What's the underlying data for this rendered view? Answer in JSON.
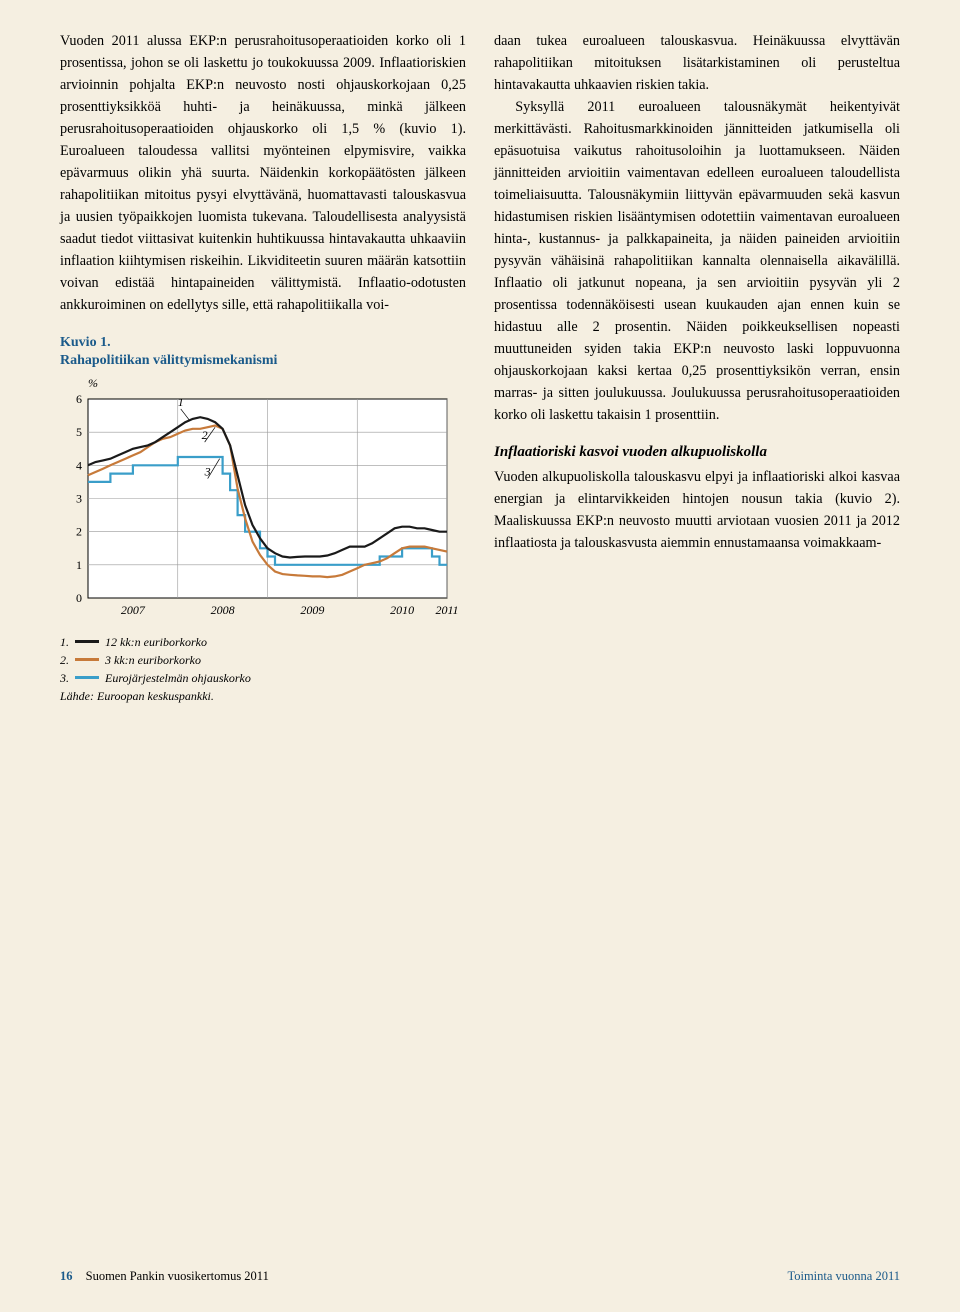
{
  "leftColumn": {
    "bodyHtml": "Vuoden 2011 alussa EKP:n perusrahoitusoperaatioiden korko oli 1 prosentissa, johon se oli laskettu jo toukokuussa 2009. Inflaatioriskien arvioinnin pohjalta EKP:n neuvosto nosti ohjauskorkojaan 0,25 prosenttiyksikköä huhti- ja heinäkuussa, minkä jälkeen perusrahoitusoperaatioiden ohjauskorko oli 1,5 % (kuvio 1). Euroalueen taloudessa vallitsi myönteinen elpymisvire, vaikka epävarmuus olikin yhä suurta. Näidenkin korkopäätösten jälkeen rahapolitiikan mitoitus pysyi elvyttävänä, huomattavasti talouskasvua ja uusien työpaikkojen luomista tukevana. Taloudellisesta analyysistä saadut tiedot viittasivat kuitenkin huhtikuussa hintavakautta uhkaaviin inflaation kiihtymisen riskeihin. Likviditeetin suuren määrän katsottiin voivan edistää hintapaineiden välittymistä. Inflaatio-odotusten ankkuroiminen on edellytys sille, että rahapolitiikalla voi-"
  },
  "rightColumn": {
    "para1": "daan tukea euroalueen talouskasvua. Heinäkuussa elvyttävän rahapolitiikan mitoituksen lisätarkistaminen oli perusteltua hintavakautta uhkaavien riskien takia.",
    "para2": "Syksyllä 2011 euroalueen talousnäkymät heikentyivät merkittävästi. Rahoitusmarkkinoiden jännitteiden jatkumisella oli epäsuotuisa vaikutus rahoitusoloihin ja luottamukseen. Näiden jännitteiden arvioitiin vaimentavan edelleen euroalueen taloudellista toimeliaisuutta. Talousnäkymiin liittyvän epävarmuuden sekä kasvun hidastumisen riskien lisääntymisen odotettiin vaimentavan euroalueen hinta-, kustannus- ja palkkapaineita, ja näiden paineiden arvioitiin pysyvän vähäisinä rahapolitiikan kannalta olennaisella aikavälillä. Inflaatio oli jatkunut nopeana, ja sen arvioitiin pysyvän yli 2 prosentissa todennäköisesti usean kuukauden ajan ennen kuin se hidastuu alle 2 prosentin. Näiden poikkeuksellisen nopeasti muuttuneiden syiden takia EKP:n neuvosto laski loppuvuonna ohjauskorkojaan kaksi kertaa 0,25 prosenttiyksikön verran, ensin marras- ja sitten joulukuussa. Joulukuussa perusrahoitusoperaatioiden korko oli laskettu takaisin 1 prosenttiin.",
    "subheading": "Inflaatioriski kasvoi vuoden alkupuoliskolla",
    "para3": "Vuoden alkupuoliskolla talouskasvu elpyi ja inflaatioriski alkoi kasvaa energian ja elintarvikkeiden hintojen nousun takia (kuvio 2). Maaliskuussa EKP:n neuvosto muutti arviotaan vuosien 2011 ja 2012 inflaatiosta ja talouskasvusta aiemmin ennustamaansa voimakkaam-"
  },
  "chart": {
    "titleLine1": "Kuvio 1.",
    "titleLine2": "Rahapolitiikan välittymismekanismi",
    "ylabel": "%",
    "ylim": [
      0,
      6
    ],
    "ytick_step": 1,
    "xlabels": [
      "2007",
      "2008",
      "2009",
      "2010",
      "2011"
    ],
    "xPositions": [
      0,
      60,
      120,
      180,
      240
    ],
    "seriesLabels": {
      "s1": "12 kk:n euriborkorko",
      "s2": "3 kk:n euriborkorko",
      "s3": "Eurojärjestelmän ohjauskorko"
    },
    "legendPrefix": {
      "n1": "1.",
      "n2": "2.",
      "n3": "3."
    },
    "source": "Lähde: Euroopan keskuspankki.",
    "colors": {
      "s1": "#1a1a1a",
      "s2": "#c77a3a",
      "s3": "#3a9ec9",
      "grid": "#999999",
      "border": "#000000",
      "background": "#ffffff"
    },
    "lineWidth": 2.2,
    "annot": {
      "a1": "1",
      "a2": "2",
      "a3": "3"
    },
    "series1": [
      [
        0,
        4.0
      ],
      [
        5,
        4.1
      ],
      [
        10,
        4.15
      ],
      [
        15,
        4.2
      ],
      [
        20,
        4.3
      ],
      [
        25,
        4.4
      ],
      [
        30,
        4.5
      ],
      [
        35,
        4.55
      ],
      [
        40,
        4.6
      ],
      [
        45,
        4.7
      ],
      [
        50,
        4.85
      ],
      [
        55,
        5.0
      ],
      [
        60,
        5.15
      ],
      [
        65,
        5.3
      ],
      [
        70,
        5.4
      ],
      [
        75,
        5.45
      ],
      [
        80,
        5.4
      ],
      [
        85,
        5.3
      ],
      [
        90,
        5.1
      ],
      [
        95,
        4.6
      ],
      [
        100,
        3.7
      ],
      [
        105,
        2.8
      ],
      [
        110,
        2.2
      ],
      [
        115,
        1.8
      ],
      [
        120,
        1.5
      ],
      [
        125,
        1.35
      ],
      [
        130,
        1.25
      ],
      [
        135,
        1.22
      ],
      [
        140,
        1.24
      ],
      [
        145,
        1.25
      ],
      [
        150,
        1.25
      ],
      [
        155,
        1.25
      ],
      [
        160,
        1.28
      ],
      [
        165,
        1.35
      ],
      [
        170,
        1.45
      ],
      [
        175,
        1.55
      ],
      [
        180,
        1.55
      ],
      [
        185,
        1.55
      ],
      [
        190,
        1.65
      ],
      [
        195,
        1.8
      ],
      [
        200,
        1.95
      ],
      [
        205,
        2.1
      ],
      [
        210,
        2.15
      ],
      [
        215,
        2.15
      ],
      [
        220,
        2.1
      ],
      [
        225,
        2.1
      ],
      [
        230,
        2.05
      ],
      [
        235,
        2.0
      ],
      [
        240,
        2.0
      ]
    ],
    "series2": [
      [
        0,
        3.7
      ],
      [
        5,
        3.8
      ],
      [
        10,
        3.9
      ],
      [
        15,
        4.0
      ],
      [
        20,
        4.1
      ],
      [
        25,
        4.2
      ],
      [
        30,
        4.3
      ],
      [
        35,
        4.4
      ],
      [
        40,
        4.55
      ],
      [
        45,
        4.7
      ],
      [
        50,
        4.8
      ],
      [
        55,
        4.85
      ],
      [
        60,
        4.95
      ],
      [
        65,
        5.05
      ],
      [
        70,
        5.1
      ],
      [
        75,
        5.1
      ],
      [
        80,
        5.15
      ],
      [
        85,
        5.2
      ],
      [
        90,
        5.1
      ],
      [
        95,
        4.6
      ],
      [
        100,
        3.3
      ],
      [
        105,
        2.4
      ],
      [
        110,
        1.7
      ],
      [
        115,
        1.3
      ],
      [
        120,
        1.0
      ],
      [
        125,
        0.8
      ],
      [
        130,
        0.72
      ],
      [
        135,
        0.7
      ],
      [
        140,
        0.68
      ],
      [
        145,
        0.67
      ],
      [
        150,
        0.65
      ],
      [
        155,
        0.65
      ],
      [
        160,
        0.63
      ],
      [
        165,
        0.65
      ],
      [
        170,
        0.7
      ],
      [
        175,
        0.8
      ],
      [
        180,
        0.9
      ],
      [
        185,
        1.0
      ],
      [
        190,
        1.05
      ],
      [
        195,
        1.1
      ],
      [
        200,
        1.2
      ],
      [
        205,
        1.35
      ],
      [
        210,
        1.5
      ],
      [
        215,
        1.55
      ],
      [
        220,
        1.55
      ],
      [
        225,
        1.55
      ],
      [
        230,
        1.5
      ],
      [
        235,
        1.45
      ],
      [
        240,
        1.4
      ]
    ],
    "series3": [
      [
        0,
        3.5
      ],
      [
        15,
        3.5
      ],
      [
        15,
        3.75
      ],
      [
        30,
        3.75
      ],
      [
        30,
        4.0
      ],
      [
        60,
        4.0
      ],
      [
        60,
        4.25
      ],
      [
        90,
        4.25
      ],
      [
        90,
        3.75
      ],
      [
        95,
        3.75
      ],
      [
        95,
        3.25
      ],
      [
        100,
        3.25
      ],
      [
        100,
        2.5
      ],
      [
        105,
        2.5
      ],
      [
        105,
        2.0
      ],
      [
        115,
        2.0
      ],
      [
        115,
        1.5
      ],
      [
        120,
        1.5
      ],
      [
        120,
        1.25
      ],
      [
        125,
        1.25
      ],
      [
        125,
        1.0
      ],
      [
        195,
        1.0
      ],
      [
        195,
        1.25
      ],
      [
        210,
        1.25
      ],
      [
        210,
        1.5
      ],
      [
        230,
        1.5
      ],
      [
        230,
        1.25
      ],
      [
        235,
        1.25
      ],
      [
        235,
        1.0
      ],
      [
        240,
        1.0
      ]
    ]
  },
  "footer": {
    "pageNumber": "16",
    "leftText": "Suomen Pankin vuosikertomus 2011",
    "rightText": "Toiminta vuonna 2011"
  }
}
